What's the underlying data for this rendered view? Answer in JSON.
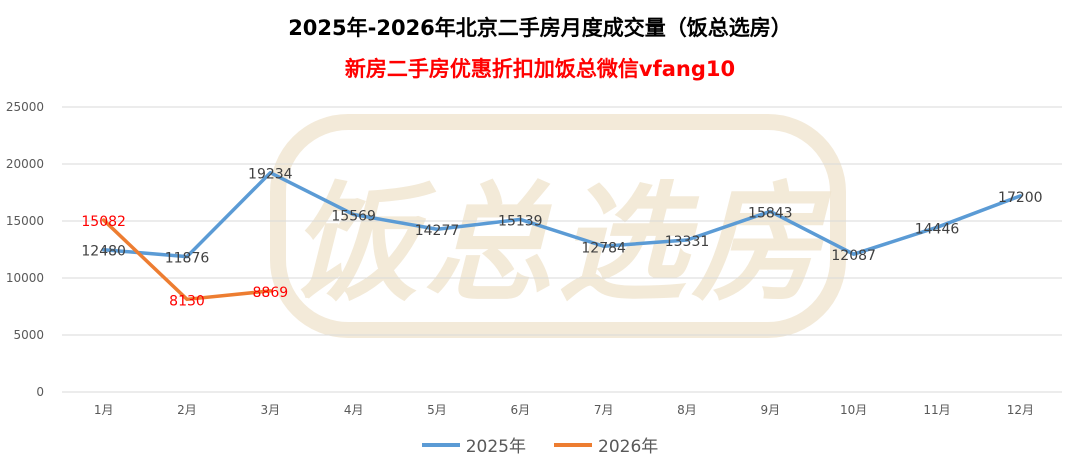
{
  "title": "2025年-2026年北京二手房月度成交量（饭总选房）",
  "subtitle": "新房二手房优惠折扣加饭总微信vfang10",
  "subtitle_color": "#ff0000",
  "watermark": {
    "text": "饭总选房",
    "color": "#efe3cc"
  },
  "chart_data": {
    "type": "line",
    "categories": [
      "1月",
      "2月",
      "3月",
      "4月",
      "5月",
      "6月",
      "7月",
      "8月",
      "9月",
      "10月",
      "11月",
      "12月"
    ],
    "series": [
      {
        "name": "2025年",
        "color": "#5b9bd5",
        "label_color": "#404040",
        "values": [
          12480,
          11876,
          19234,
          15569,
          14277,
          15139,
          12784,
          13331,
          15843,
          12087,
          14446,
          17200
        ]
      },
      {
        "name": "2026年",
        "color": "#ed7d31",
        "label_color": "#ff0000",
        "values": [
          15082,
          8130,
          8869,
          null,
          null,
          null,
          null,
          null,
          null,
          null,
          null,
          null
        ]
      }
    ],
    "ylim": [
      0,
      25000
    ],
    "yticks": [
      0,
      5000,
      10000,
      15000,
      20000,
      25000
    ],
    "grid": true,
    "legend_position": "bottom"
  }
}
